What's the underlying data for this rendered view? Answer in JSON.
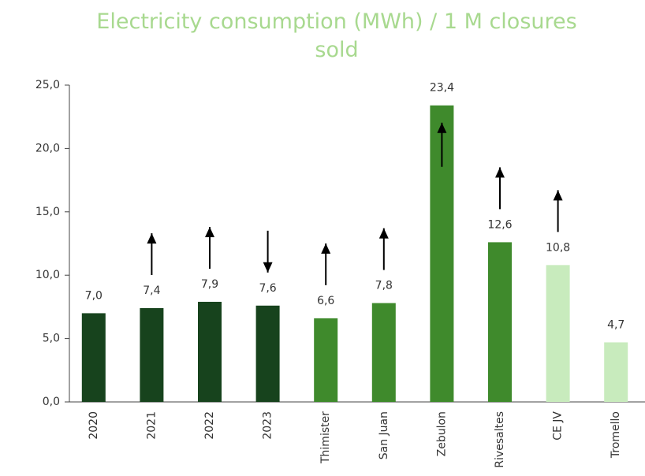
{
  "chart_data": {
    "type": "bar",
    "title": "Electricity consumption (MWh) / 1 M closures sold",
    "categories": [
      "2020",
      "2021",
      "2022",
      "2023",
      "Thimister",
      "San Juan",
      "Zebulon",
      "Rivesaltes",
      "CE JV",
      "Tromello"
    ],
    "values": [
      7.0,
      7.4,
      7.9,
      7.6,
      6.6,
      7.8,
      23.4,
      12.6,
      10.8,
      4.7
    ],
    "value_labels": [
      "7,0",
      "7,4",
      "7,9",
      "7,6",
      "6,6",
      "7,8",
      "23,4",
      "12,6",
      "10,8",
      "4,7"
    ],
    "colors": [
      "#17431d",
      "#17431d",
      "#17431d",
      "#17431d",
      "#3f8a2c",
      "#3f8a2c",
      "#3f8a2c",
      "#3f8a2c",
      "#c8ebbd",
      "#c8ebbd"
    ],
    "trend": [
      null,
      "up",
      "up",
      "down",
      "up",
      "up",
      "up",
      "up",
      "up",
      null
    ],
    "ylim": [
      0,
      25
    ],
    "yticks": [
      {
        "value": 0,
        "label": "0,0"
      },
      {
        "value": 5,
        "label": "5,0"
      },
      {
        "value": 10,
        "label": "10,0"
      },
      {
        "value": 15,
        "label": "15,0"
      },
      {
        "value": 20,
        "label": "20,0"
      },
      {
        "value": 25,
        "label": "25,0"
      }
    ],
    "grid": false
  }
}
